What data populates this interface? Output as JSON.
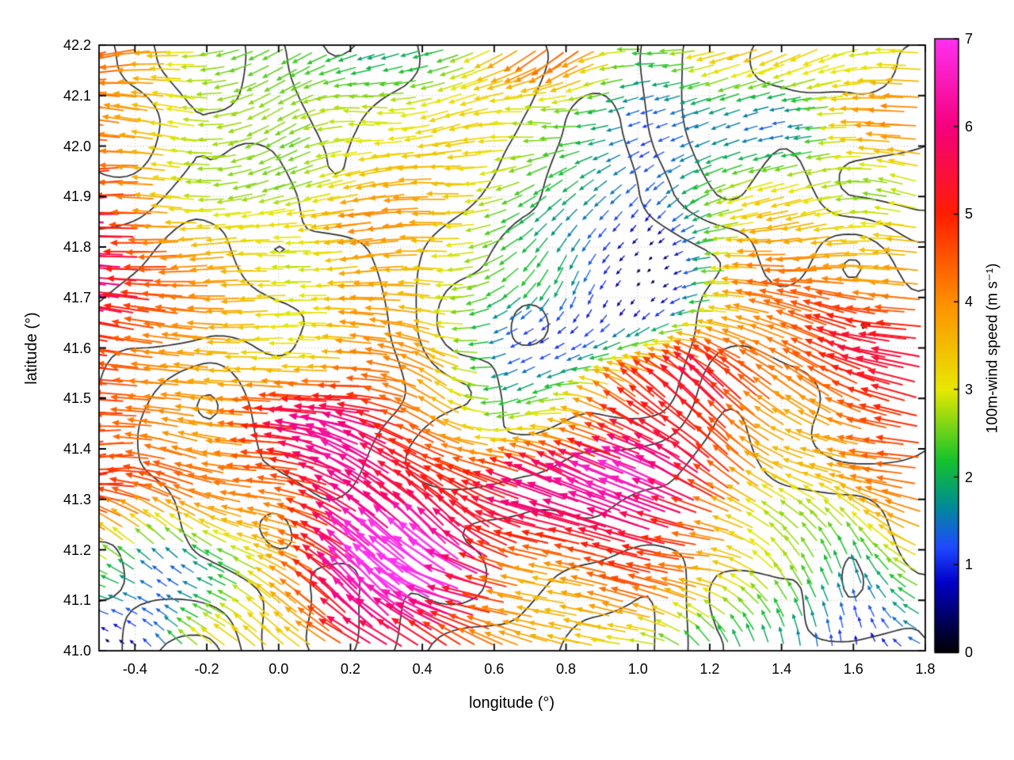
{
  "figure": {
    "background": "#ffffff",
    "frame_color": "#000000",
    "grid_color": "#b8b8b8"
  },
  "chart_data": {
    "type": "quiver",
    "title": "",
    "xlabel": "longitude (°)",
    "ylabel": "latitude (°)",
    "xlim": [
      -0.5,
      1.8
    ],
    "ylim": [
      41.0,
      42.2
    ],
    "grid": "dotted",
    "xticks": {
      "values": [
        -0.4,
        -0.2,
        0.0,
        0.2,
        0.4,
        0.6,
        0.8,
        1.0,
        1.2,
        1.4,
        1.6,
        1.8
      ],
      "labels": [
        "-0.4",
        "-0.2",
        "0.0",
        "0.2",
        "0.4",
        "0.6",
        "0.8",
        "1.0",
        "1.2",
        "1.4",
        "1.6",
        "1.8"
      ]
    },
    "yticks": {
      "values": [
        41.0,
        41.1,
        41.2,
        41.3,
        41.4,
        41.5,
        41.6,
        41.7,
        41.8,
        41.9,
        42.0,
        42.1,
        42.2
      ],
      "labels": [
        "41.0",
        "41.1",
        "41.2",
        "41.3",
        "41.4",
        "41.5",
        "41.6",
        "41.7",
        "41.8",
        "41.9",
        "42.0",
        "42.1",
        "42.2"
      ]
    },
    "colorbar": {
      "label": "100m-wind speed (m s⁻¹)",
      "min": 0,
      "max": 7,
      "ticks": {
        "values": [
          0,
          1,
          2,
          3,
          4,
          5,
          6,
          7
        ],
        "labels": [
          "0",
          "1",
          "2",
          "3",
          "4",
          "5",
          "6",
          "7"
        ]
      },
      "palette_stops": [
        [
          0.0,
          "#000000"
        ],
        [
          0.8,
          "#0000c8"
        ],
        [
          1.2,
          "#1f49ff"
        ],
        [
          1.7,
          "#008f8f"
        ],
        [
          2.2,
          "#16c32c"
        ],
        [
          3.0,
          "#e8e800"
        ],
        [
          4.0,
          "#ff8f00"
        ],
        [
          5.0,
          "#ff1e00"
        ],
        [
          6.0,
          "#f5007d"
        ],
        [
          7.0,
          "#ff30f0"
        ]
      ]
    },
    "contours": {
      "color": "#2e2e2e",
      "levels": [
        0.36,
        0.45,
        0.54,
        0.63,
        0.72
      ]
    },
    "wind_field_sample": {
      "direction_convention": "degrees, 0=E, 90=N, 180=W",
      "lon_nodes": [
        -0.5,
        -0.308,
        -0.117,
        0.075,
        0.267,
        0.458,
        0.65,
        0.842,
        1.033,
        1.225,
        1.417,
        1.608,
        1.8
      ],
      "lat_nodes": [
        42.2,
        42.029,
        41.857,
        41.686,
        41.514,
        41.343,
        41.171,
        41.0
      ],
      "speed_ms": [
        [
          3.5,
          3.8,
          3.0,
          2.5,
          2.0,
          2.5,
          3.0,
          3.5,
          2.5,
          3.0,
          2.5,
          3.0,
          3.5
        ],
        [
          4.0,
          3.5,
          3.0,
          1.5,
          2.0,
          2.5,
          3.5,
          3.0,
          2.0,
          2.5,
          2.0,
          2.5,
          3.0
        ],
        [
          5.5,
          4.5,
          4.0,
          3.5,
          4.0,
          3.0,
          2.0,
          1.5,
          1.0,
          2.0,
          3.0,
          3.5,
          4.0
        ],
        [
          6.0,
          5.0,
          4.5,
          4.0,
          4.5,
          3.0,
          1.5,
          1.0,
          1.5,
          3.0,
          4.0,
          4.5,
          4.0
        ],
        [
          5.5,
          4.5,
          4.0,
          4.5,
          5.0,
          4.0,
          2.5,
          3.5,
          5.5,
          6.5,
          5.0,
          4.0,
          4.5
        ],
        [
          4.5,
          4.0,
          3.5,
          4.0,
          6.5,
          6.0,
          4.5,
          5.0,
          6.5,
          5.5,
          4.5,
          3.5,
          4.0
        ],
        [
          2.5,
          1.0,
          2.0,
          3.5,
          6.0,
          6.5,
          5.0,
          4.5,
          4.0,
          3.0,
          2.5,
          2.0,
          3.5
        ],
        [
          1.0,
          1.2,
          2.5,
          4.0,
          6.5,
          5.5,
          4.0,
          3.5,
          2.5,
          1.5,
          1.0,
          0.8,
          1.5
        ]
      ],
      "direction_deg": [
        [
          185,
          190,
          195,
          200,
          190,
          185,
          200,
          210,
          190,
          185,
          190,
          185,
          180
        ],
        [
          185,
          185,
          190,
          200,
          195,
          185,
          180,
          190,
          200,
          195,
          185,
          180,
          185
        ],
        [
          180,
          180,
          185,
          180,
          175,
          185,
          200,
          220,
          240,
          200,
          185,
          180,
          175
        ],
        [
          180,
          178,
          180,
          175,
          170,
          180,
          220,
          250,
          230,
          190,
          175,
          170,
          165
        ],
        [
          180,
          178,
          175,
          170,
          165,
          160,
          200,
          170,
          155,
          150,
          160,
          165,
          160
        ],
        [
          182,
          180,
          178,
          170,
          155,
          150,
          160,
          150,
          145,
          150,
          155,
          160,
          155
        ],
        [
          150,
          140,
          160,
          165,
          150,
          145,
          155,
          160,
          165,
          170,
          120,
          100,
          150
        ],
        [
          140,
          130,
          150,
          155,
          145,
          150,
          160,
          165,
          170,
          110,
          95,
          90,
          140
        ]
      ]
    },
    "arrow_grid": {
      "nx": 56,
      "ny": 42,
      "seed": 7
    }
  }
}
